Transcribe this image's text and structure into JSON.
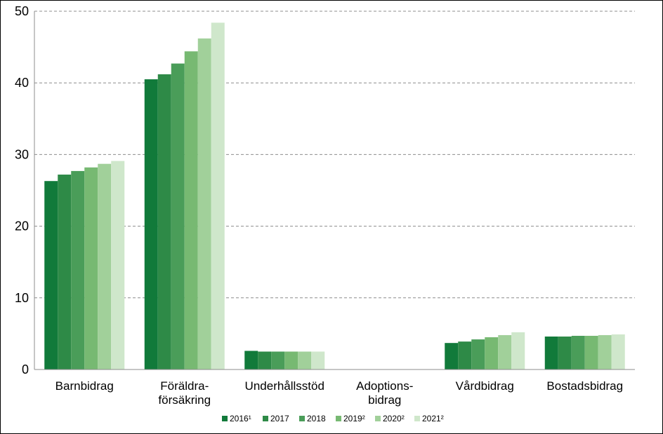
{
  "chart_data": {
    "type": "bar",
    "title": "",
    "xlabel": "",
    "ylabel": "",
    "ylim": [
      0,
      50
    ],
    "yticks": [
      0,
      10,
      20,
      30,
      40,
      50
    ],
    "grid": "horizontal dashed",
    "legend_position": "bottom",
    "categories": [
      [
        "Barnbidrag"
      ],
      [
        "Föräldra-",
        "försäkring"
      ],
      [
        "Underhållsstöd"
      ],
      [
        "Adoptions-",
        "bidrag"
      ],
      [
        "Vårdbidrag"
      ],
      [
        "Bostadsbidrag"
      ]
    ],
    "series": [
      {
        "name": "2016¹",
        "color": "#117a3a",
        "values": [
          26.3,
          40.5,
          2.6,
          0.0,
          3.7,
          4.6
        ]
      },
      {
        "name": "2017",
        "color": "#2e8a47",
        "values": [
          27.2,
          41.2,
          2.5,
          0.0,
          3.9,
          4.6
        ]
      },
      {
        "name": "2018",
        "color": "#4a9d59",
        "values": [
          27.7,
          42.7,
          2.5,
          0.0,
          4.2,
          4.7
        ]
      },
      {
        "name": "2019²",
        "color": "#77b972",
        "values": [
          28.2,
          44.4,
          2.5,
          0.0,
          4.5,
          4.7
        ]
      },
      {
        "name": "2020²",
        "color": "#a1d09a",
        "values": [
          28.7,
          46.2,
          2.5,
          0.0,
          4.8,
          4.8
        ]
      },
      {
        "name": "2021²",
        "color": "#cfe7cb",
        "values": [
          29.1,
          48.4,
          2.5,
          0.0,
          5.2,
          4.9
        ]
      }
    ]
  }
}
